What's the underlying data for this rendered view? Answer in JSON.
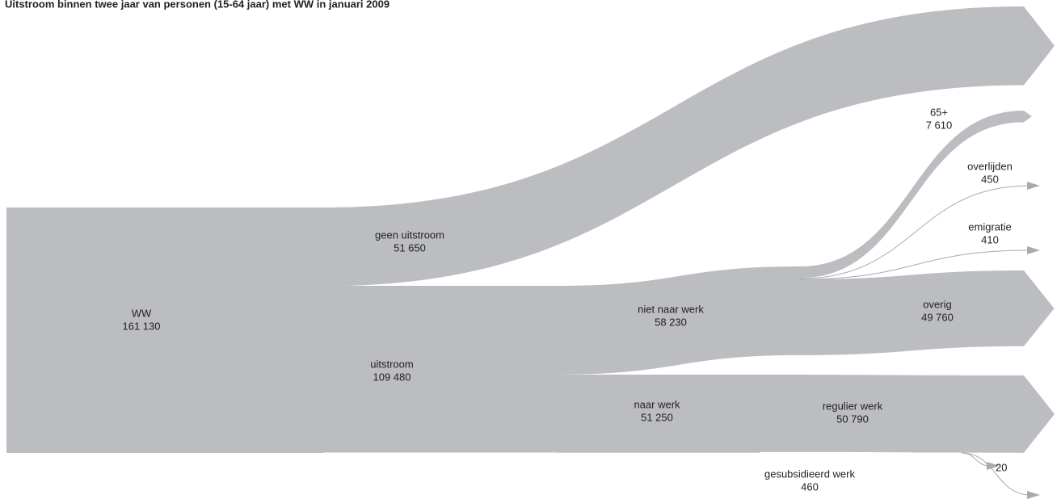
{
  "chart_data": {
    "type": "sankey",
    "title": "Uitstroom binnen twee jaar van personen (15-64 jaar) met WW in januari 2009",
    "color": "#bcbdc1",
    "root": {
      "name": "WW",
      "value": 161130,
      "value_label": "161 130",
      "children": [
        {
          "name": "geen uitstroom",
          "value": 51650,
          "value_label": "51 650"
        },
        {
          "name": "uitstroom",
          "value": 109480,
          "value_label": "109 480",
          "children": [
            {
              "name": "niet naar werk",
              "value": 58230,
              "value_label": "58 230",
              "children": [
                {
                  "name": "65+",
                  "value": 7610,
                  "value_label": "7 610"
                },
                {
                  "name": "overlijden",
                  "value": 450
                },
                {
                  "name": "emigratie",
                  "value": 410
                },
                {
                  "name": "overig",
                  "value": 49760,
                  "value_label": "49 760"
                }
              ]
            },
            {
              "name": "naar werk",
              "value": 51250,
              "value_label": "51 250",
              "children": [
                {
                  "name": "regulier werk",
                  "value": 50790,
                  "value_label": "50 790"
                },
                {
                  "name": null,
                  "value": 20
                },
                {
                  "name": "gesubsidieerd werk",
                  "value": 460
                }
              ]
            }
          ]
        }
      ]
    }
  }
}
